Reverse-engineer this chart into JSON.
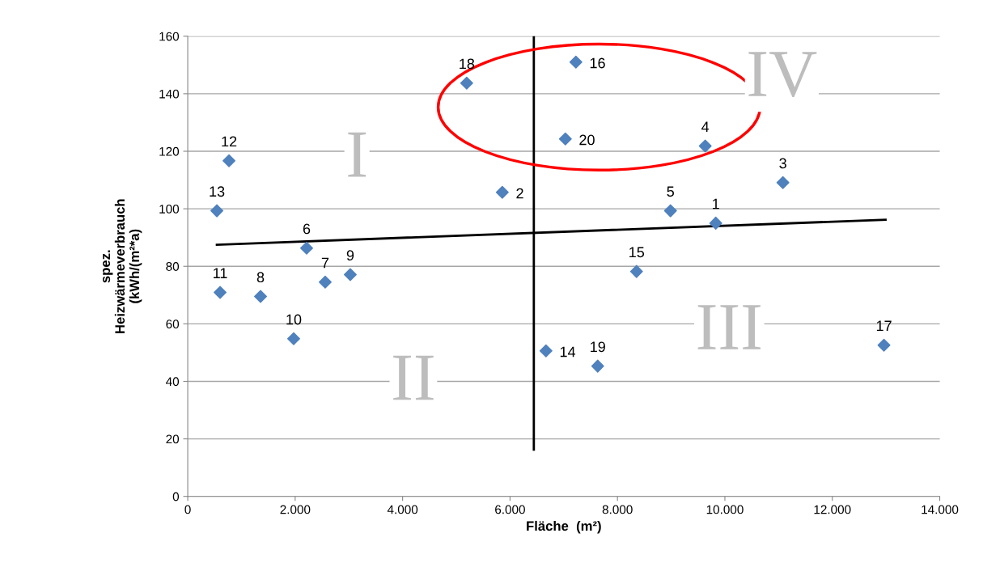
{
  "chart_data": {
    "type": "scatter",
    "xlabel": "Fläche  (m²)",
    "ylabel": "spez.\nHeizwärmeverbrauch\n(kWh/(m²*a)",
    "marker": "diamond",
    "grid": "y",
    "xlim": [
      0,
      14000
    ],
    "ylim": [
      0,
      160
    ],
    "xticks": [
      0,
      {
        "value": 2000,
        "label": "2.000"
      },
      {
        "value": 4000,
        "label": "4.000"
      },
      {
        "value": 6000,
        "label": "6.000"
      },
      {
        "value": 8000,
        "label": "8.000"
      },
      {
        "value": 10000,
        "label": "10.000"
      },
      {
        "value": 12000,
        "label": "12.000"
      },
      {
        "value": 14000,
        "label": "14.000"
      }
    ],
    "yticks": [
      0,
      20,
      40,
      60,
      80,
      100,
      120,
      140,
      160
    ],
    "series": [
      {
        "color": "#4f81bd",
        "x": [
          9830,
          5856,
          11080,
          9634,
          8987,
          2213,
          2559,
          1355,
          3026,
          1972,
          602,
          768,
          542,
          6669,
          8355,
          7226,
          12961,
          5193,
          7632,
          7030
        ],
        "values": [
          95.0,
          105.7,
          109.1,
          121.8,
          99.3,
          86.3,
          74.5,
          69.5,
          77.1,
          54.8,
          70.9,
          116.7,
          99.3,
          50.6,
          78.2,
          151.0,
          52.6,
          143.7,
          45.3,
          124.3
        ]
      },
      {
        "type": "line",
        "marker": "none",
        "color": "#000000",
        "x": [
          542,
          12991
        ],
        "values": [
          87.5,
          96.2
        ]
      },
      {
        "type": "line",
        "marker": "none",
        "color": "#000000",
        "x": [
          6443,
          6443
        ],
        "values": [
          160,
          16.3
        ]
      }
    ],
    "annotations": [
      {
        "text": "1",
        "x": 9830,
        "y": 95.0
      },
      {
        "text": "2",
        "x": 5856,
        "y": 105.7
      },
      {
        "text": "3",
        "x": 11080,
        "y": 109.1
      },
      {
        "text": "4",
        "x": 9634,
        "y": 121.8
      },
      {
        "text": "5",
        "x": 8987,
        "y": 99.3
      },
      {
        "text": "6",
        "x": 2213,
        "y": 86.3
      },
      {
        "text": "7",
        "x": 2559,
        "y": 74.5
      },
      {
        "text": "8",
        "x": 1355,
        "y": 69.5
      },
      {
        "text": "9",
        "x": 3026,
        "y": 77.1
      },
      {
        "text": "10",
        "x": 1972,
        "y": 54.8
      },
      {
        "text": "11",
        "x": 602,
        "y": 70.9
      },
      {
        "text": "12",
        "x": 768,
        "y": 116.7
      },
      {
        "text": "13",
        "x": 542,
        "y": 99.3
      },
      {
        "text": "14",
        "x": 6669,
        "y": 50.6
      },
      {
        "text": "15",
        "x": 8355,
        "y": 78.2
      },
      {
        "text": "16",
        "x": 7226,
        "y": 151.0
      },
      {
        "text": "17",
        "x": 12961,
        "y": 52.6
      },
      {
        "text": "18",
        "x": 5193,
        "y": 143.7
      },
      {
        "text": "19",
        "x": 7632,
        "y": 45.3
      },
      {
        "text": "20",
        "x": 7030,
        "y": 124.3
      },
      "I",
      "II",
      "III",
      "IV"
    ]
  }
}
